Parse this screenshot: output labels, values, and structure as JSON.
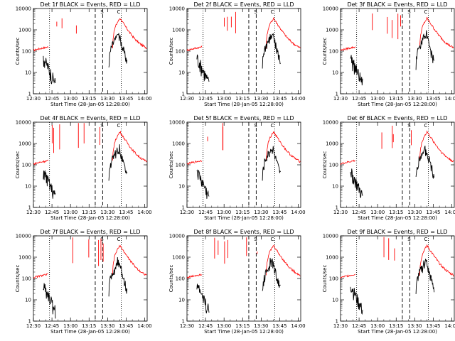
{
  "figure": {
    "title": "",
    "panel_count": 9
  },
  "chart_data": [
    {
      "type": "line",
      "title": "Det 1f BLACK = Events, RED = LLD",
      "xlabel": "Start Time (28-Jan-05 12:28:00)",
      "ylabel": "Counts/sec",
      "x_tick_labels": [
        "12:30",
        "12:45",
        "13:00",
        "13:15",
        "13:30",
        "13:45",
        "14:00"
      ],
      "y_tick_labels": [
        "1",
        "10",
        "100",
        "1000",
        "10000"
      ],
      "series": [
        {
          "name": "Events",
          "color": "#000000"
        },
        {
          "name": "LLD",
          "color": "#ff0000"
        }
      ],
      "annotations": [
        "S",
        "C"
      ],
      "ylim": [
        1,
        10000
      ],
      "log_y": true
    },
    {
      "type": "line",
      "title": "Det 2f BLACK = Events, RED = LLD",
      "xlabel": "Start Time (28-Jan-05 12:28:00)",
      "ylabel": "Counts/sec",
      "x_tick_labels": [
        "12:30",
        "12:45",
        "13:00",
        "13:15",
        "13:30",
        "13:45",
        "14:00"
      ],
      "y_tick_labels": [
        "1",
        "10",
        "100",
        "1000",
        "10000"
      ],
      "series": [
        {
          "name": "Events",
          "color": "#000000"
        },
        {
          "name": "LLD",
          "color": "#ff0000"
        }
      ],
      "annotations": [
        "S",
        "C"
      ],
      "ylim": [
        1,
        10000
      ],
      "log_y": true
    },
    {
      "type": "line",
      "title": "Det 3f BLACK = Events, RED = LLD",
      "xlabel": "Start Time (28-Jan-05 12:28:00)",
      "ylabel": "Counts/sec",
      "x_tick_labels": [
        "12:30",
        "12:45",
        "13:00",
        "13:15",
        "13:30",
        "13:45",
        "14:00"
      ],
      "y_tick_labels": [
        "1",
        "10",
        "100",
        "1000",
        "10000"
      ],
      "series": [
        {
          "name": "Events",
          "color": "#000000"
        },
        {
          "name": "LLD",
          "color": "#ff0000"
        }
      ],
      "annotations": [
        "S",
        "C"
      ],
      "ylim": [
        1,
        10000
      ],
      "log_y": true
    },
    {
      "type": "line",
      "title": "Det 4f BLACK = Events, RED = LLD",
      "xlabel": "Start Time (28-Jan-05 12:28:00)",
      "ylabel": "Counts/sec",
      "x_tick_labels": [
        "12:30",
        "12:45",
        "13:00",
        "13:15",
        "13:30",
        "13:45",
        "14:00"
      ],
      "y_tick_labels": [
        "1",
        "10",
        "100",
        "1000",
        "10000"
      ],
      "series": [
        {
          "name": "Events",
          "color": "#000000"
        },
        {
          "name": "LLD",
          "color": "#ff0000"
        }
      ],
      "annotations": [
        "S",
        "C"
      ],
      "ylim": [
        1,
        10000
      ],
      "log_y": true
    },
    {
      "type": "line",
      "title": "Det 5f BLACK = Events, RED = LLD",
      "xlabel": "Start Time (28-Jan-05 12:28:00)",
      "ylabel": "Counts/sec",
      "x_tick_labels": [
        "12:30",
        "12:45",
        "13:00",
        "13:15",
        "13:30",
        "13:45",
        "14:00"
      ],
      "y_tick_labels": [
        "1",
        "10",
        "100",
        "1000",
        "10000"
      ],
      "series": [
        {
          "name": "Events",
          "color": "#000000"
        },
        {
          "name": "LLD",
          "color": "#ff0000"
        }
      ],
      "annotations": [
        "S",
        "C"
      ],
      "ylim": [
        1,
        10000
      ],
      "log_y": true
    },
    {
      "type": "line",
      "title": "Det 6f BLACK = Events, RED = LLD",
      "xlabel": "Start Time (28-Jan-05 12:28:00)",
      "ylabel": "Counts/sec",
      "x_tick_labels": [
        "12:30",
        "12:45",
        "13:00",
        "13:15",
        "13:30",
        "13:45",
        "14:00"
      ],
      "y_tick_labels": [
        "1",
        "10",
        "100",
        "1000",
        "10000"
      ],
      "series": [
        {
          "name": "Events",
          "color": "#000000"
        },
        {
          "name": "LLD",
          "color": "#ff0000"
        }
      ],
      "annotations": [
        "S",
        "C"
      ],
      "ylim": [
        1,
        10000
      ],
      "log_y": true
    },
    {
      "type": "line",
      "title": "Det 7f BLACK = Events, RED = LLD",
      "xlabel": "Start Time (28-Jan-05 12:28:00)",
      "ylabel": "Counts/sec",
      "x_tick_labels": [
        "12:30",
        "12:45",
        "13:00",
        "13:15",
        "13:30",
        "13:45",
        "14:00"
      ],
      "y_tick_labels": [
        "1",
        "10",
        "100",
        "1000",
        "10000"
      ],
      "series": [
        {
          "name": "Events",
          "color": "#000000"
        },
        {
          "name": "LLD",
          "color": "#ff0000"
        }
      ],
      "annotations": [
        "S",
        "C"
      ],
      "ylim": [
        1,
        10000
      ],
      "log_y": true
    },
    {
      "type": "line",
      "title": "Det 8f BLACK = Events, RED = LLD",
      "xlabel": "Start Time (28-Jan-05 12:28:00)",
      "ylabel": "Counts/sec",
      "x_tick_labels": [
        "12:30",
        "12:45",
        "13:00",
        "13:15",
        "13:30",
        "13:45",
        "14:00"
      ],
      "y_tick_labels": [
        "1",
        "10",
        "100",
        "1000",
        "10000"
      ],
      "series": [
        {
          "name": "Events",
          "color": "#000000"
        },
        {
          "name": "LLD",
          "color": "#ff0000"
        }
      ],
      "annotations": [
        "S",
        "C"
      ],
      "ylim": [
        1,
        10000
      ],
      "log_y": true
    },
    {
      "type": "line",
      "title": "Det 9f BLACK = Events, RED = LLD",
      "xlabel": "Start Time (28-Jan-05 12:28:00)",
      "ylabel": "Counts/sec",
      "x_tick_labels": [
        "12:30",
        "12:45",
        "13:00",
        "13:15",
        "13:30",
        "13:45",
        "14:00"
      ],
      "y_tick_labels": [
        "1",
        "10",
        "100",
        "1000",
        "10000"
      ],
      "series": [
        {
          "name": "Events",
          "color": "#000000"
        },
        {
          "name": "LLD",
          "color": "#ff0000"
        }
      ],
      "annotations": [
        "S",
        "C"
      ],
      "ylim": [
        1,
        10000
      ],
      "log_y": true
    }
  ]
}
